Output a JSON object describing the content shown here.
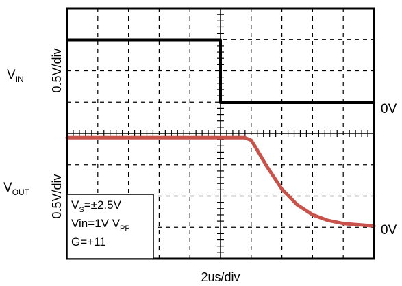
{
  "chart_data": {
    "type": "line",
    "xlabel": "2us/div",
    "x_divisions": 10,
    "y_divisions": 8,
    "channels": [
      {
        "name": "VIN",
        "label_main": "V",
        "label_sub": "IN",
        "scale_label": "0.5V/div",
        "ground_label": "0V",
        "color": "#000000",
        "x": [
          0,
          5,
          5,
          10
        ],
        "y": [
          1.0,
          1.0,
          0,
          0
        ]
      },
      {
        "name": "VOUT",
        "label_main": "V",
        "label_sub": "OUT",
        "scale_label": "0.5V/div",
        "ground_label": "0V",
        "color": "#c8534a",
        "x": [
          0,
          5.8,
          6.0,
          6.2,
          6.5,
          7.0,
          7.5,
          8.0,
          8.5,
          9.0,
          9.5,
          10
        ],
        "y": [
          1.45,
          1.45,
          1.41,
          1.25,
          1.0,
          0.63,
          0.38,
          0.22,
          0.13,
          0.08,
          0.06,
          0.04
        ]
      }
    ],
    "annotation": {
      "vs_main": "V",
      "vs_sub": "S",
      "vs_value": "=±2.5V",
      "vin_main": "Vin=1V V",
      "vin_sub": "PP",
      "gain": "G=+11"
    }
  }
}
